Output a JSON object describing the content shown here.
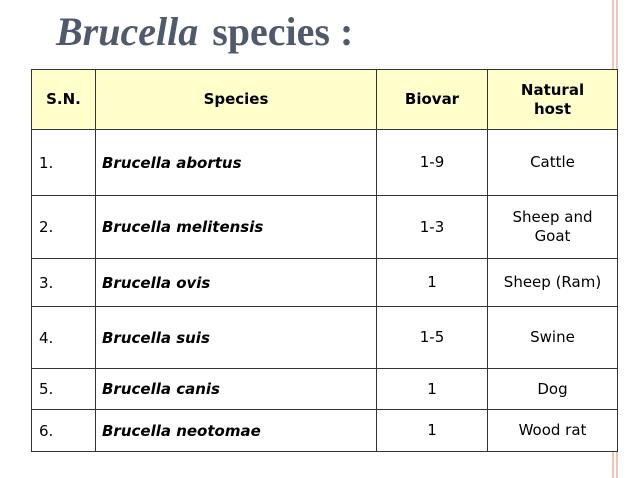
{
  "slide": {
    "title_italic": "Brucella",
    "title_rest": "species :"
  },
  "table": {
    "headers": {
      "sn": "S.N.",
      "species": "Species",
      "biovar": "Biovar",
      "host_line1": "Natural",
      "host_line2": "host"
    },
    "rows": [
      {
        "sn": "1.",
        "species": "Brucella abortus",
        "biovar": "1-9",
        "host": "Cattle"
      },
      {
        "sn": "2.",
        "species": "Brucella melitensis",
        "biovar": "1-3",
        "host": "Sheep and Goat"
      },
      {
        "sn": "3.",
        "species": "Brucella ovis",
        "biovar": "1",
        "host": "Sheep (Ram)"
      },
      {
        "sn": "4.",
        "species": "Brucella suis",
        "biovar": "1-5",
        "host": "Swine"
      },
      {
        "sn": "5.",
        "species": "Brucella canis",
        "biovar": "1",
        "host": "Dog"
      },
      {
        "sn": "6.",
        "species": "Brucella neotomae",
        "biovar": "1",
        "host": "Wood rat"
      }
    ]
  },
  "colors": {
    "title": "#505a6d",
    "header_fill": "#ffffcc",
    "border": "#333333",
    "decor_lines": "#f2c4b8"
  }
}
